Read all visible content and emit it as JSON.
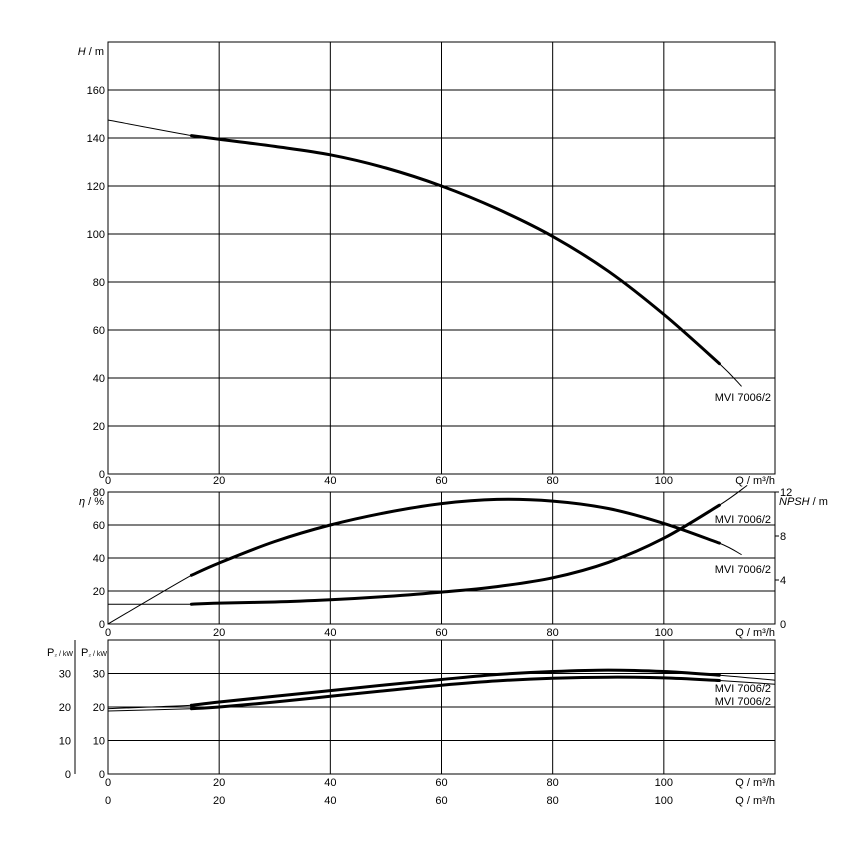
{
  "chart_data": [
    {
      "type": "line",
      "panel": "head",
      "ylabel": "H / m",
      "xlabel": "Q / m³/h",
      "xlim": [
        0,
        120
      ],
      "ylim": [
        0,
        180
      ],
      "x_ticks": [
        "0",
        "20",
        "40",
        "60",
        "80",
        "100"
      ],
      "y_ticks": [
        "0",
        "20",
        "40",
        "60",
        "80",
        "100",
        "120",
        "140",
        "160"
      ],
      "grid": true,
      "series": [
        {
          "name": "MVI 7006/2",
          "x": [
            0,
            15,
            20,
            30,
            40,
            50,
            60,
            70,
            80,
            90,
            100,
            110,
            114
          ],
          "y": [
            147.5,
            141,
            139.5,
            136.5,
            133,
            127.5,
            120,
            110.5,
            99,
            84.5,
            66.5,
            46,
            36.5
          ]
        }
      ]
    },
    {
      "type": "line",
      "panel": "efficiency-npsh",
      "ylabel_left": "η / %",
      "ylabel_right": "NPSH / m",
      "xlabel": "Q / m³/h",
      "xlim": [
        0,
        120
      ],
      "ylim_left": [
        0,
        80
      ],
      "ylim_right": [
        0,
        12
      ],
      "x_ticks": [
        "0",
        "20",
        "40",
        "60",
        "80",
        "100"
      ],
      "y_ticks_left": [
        "0",
        "20",
        "40",
        "60",
        "80"
      ],
      "y_ticks_right": [
        "0",
        "4",
        "8",
        "12"
      ],
      "grid": true,
      "series": [
        {
          "name": "MVI 7006/2",
          "axis": "left",
          "x": [
            0,
            15,
            20,
            30,
            40,
            50,
            60,
            70,
            80,
            90,
            100,
            110,
            114
          ],
          "y": [
            0,
            29.5,
            37,
            50,
            60,
            67.5,
            73,
            75.5,
            74.5,
            70,
            61,
            49,
            42
          ]
        },
        {
          "name": "MVI 7006/2",
          "axis": "right",
          "x": [
            0,
            15,
            20,
            30,
            40,
            50,
            60,
            70,
            80,
            90,
            100,
            110,
            115
          ],
          "y": [
            1.8,
            1.8,
            1.9,
            2.0,
            2.2,
            2.5,
            2.9,
            3.4,
            4.2,
            5.6,
            7.8,
            10.8,
            12.6
          ]
        }
      ]
    },
    {
      "type": "line",
      "panel": "power",
      "ylabel_outer": "P₂ / kW",
      "ylabel_inner": "P₂ / kW",
      "xlabel_inner": "Q / m³/h",
      "xlabel_outer": "Q / m³/h",
      "xlim": [
        0,
        120
      ],
      "ylim": [
        0,
        40
      ],
      "x_ticks": [
        "0",
        "20",
        "40",
        "60",
        "80",
        "100"
      ],
      "y_ticks_outer": [
        "0",
        "10",
        "20",
        "30"
      ],
      "y_ticks_inner": [
        "0",
        "10",
        "20",
        "30"
      ],
      "grid": true,
      "series": [
        {
          "name": "MVI 7006/2",
          "x": [
            0,
            15,
            20,
            30,
            40,
            50,
            60,
            70,
            80,
            90,
            100,
            110,
            120
          ],
          "y": [
            19.5,
            20.5,
            21.5,
            23.2,
            24.9,
            26.6,
            28.2,
            29.7,
            30.6,
            31,
            30.6,
            29.5,
            28
          ]
        },
        {
          "name": "MVI 7006/2",
          "x": [
            0,
            15,
            20,
            30,
            40,
            50,
            60,
            70,
            80,
            90,
            100,
            110,
            120
          ],
          "y": [
            18.8,
            19.5,
            20,
            21.5,
            23.2,
            24.9,
            26.5,
            27.8,
            28.6,
            28.9,
            28.7,
            27.9,
            26.8
          ]
        }
      ]
    }
  ]
}
